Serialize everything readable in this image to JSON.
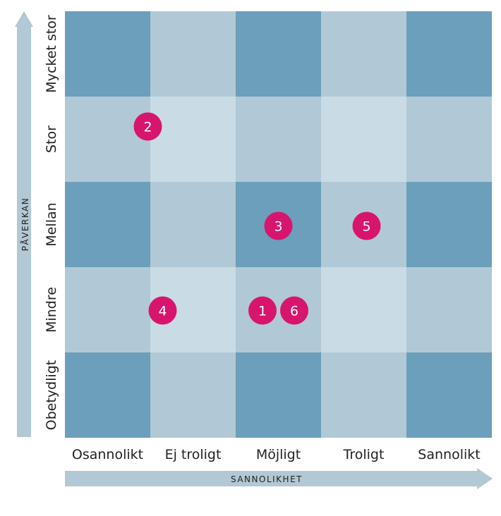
{
  "y_axis": {
    "title": "PÅVERKAN",
    "levels": [
      "Mycket stor",
      "Stor",
      "Mellan",
      "Mindre",
      "Obetydligt"
    ]
  },
  "x_axis": {
    "title": "SANNOLIKHET",
    "levels": [
      "Osannolikt",
      "Ej troligt",
      "Möjligt",
      "Troligt",
      "Sannolikt"
    ]
  },
  "grid_shades": [
    [
      "dark",
      "mid",
      "dark",
      "mid",
      "dark"
    ],
    [
      "mid",
      "light",
      "mid",
      "light",
      "mid"
    ],
    [
      "dark",
      "mid",
      "dark",
      "mid",
      "dark"
    ],
    [
      "mid",
      "light",
      "mid",
      "light",
      "mid"
    ],
    [
      "dark",
      "mid",
      "dark",
      "mid",
      "dark"
    ]
  ],
  "colors": {
    "cell_dark": "#6b9fbb",
    "cell_mid": "#b1c9d6",
    "cell_light": "#c9dbe4",
    "arrow": "#b2c8d4",
    "marker": "#d8156e"
  },
  "risks": [
    {
      "label": "1",
      "probability": "Möjligt",
      "impact": "Mindre"
    },
    {
      "label": "2",
      "probability": "Ej troligt",
      "impact": "Stor"
    },
    {
      "label": "3",
      "probability": "Möjligt",
      "impact": "Mellan"
    },
    {
      "label": "4",
      "probability": "Ej troligt",
      "impact": "Mindre"
    },
    {
      "label": "5",
      "probability": "Troligt",
      "impact": "Mellan"
    },
    {
      "label": "6",
      "probability": "Möjligt",
      "impact": "Mindre"
    }
  ]
}
